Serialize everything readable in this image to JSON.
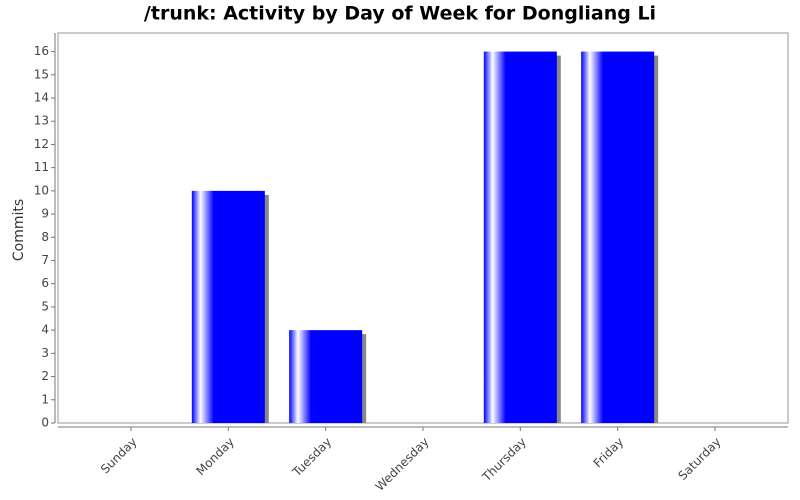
{
  "chart_data": {
    "type": "bar",
    "title": "/trunk: Activity by Day of Week for Dongliang Li",
    "ylabel": "Commits",
    "categories": [
      "Sunday",
      "Monday",
      "Tuesday",
      "Wednesday",
      "Thursday",
      "Friday",
      "Saturday"
    ],
    "values": [
      0,
      10,
      4,
      0,
      16,
      16,
      0
    ],
    "color": "#0000ff",
    "ylim": [
      0,
      16.8
    ],
    "yticks": [
      0,
      1,
      2,
      3,
      4,
      5,
      6,
      7,
      8,
      9,
      10,
      11,
      12,
      13,
      14,
      15,
      16
    ],
    "grid": false
  }
}
